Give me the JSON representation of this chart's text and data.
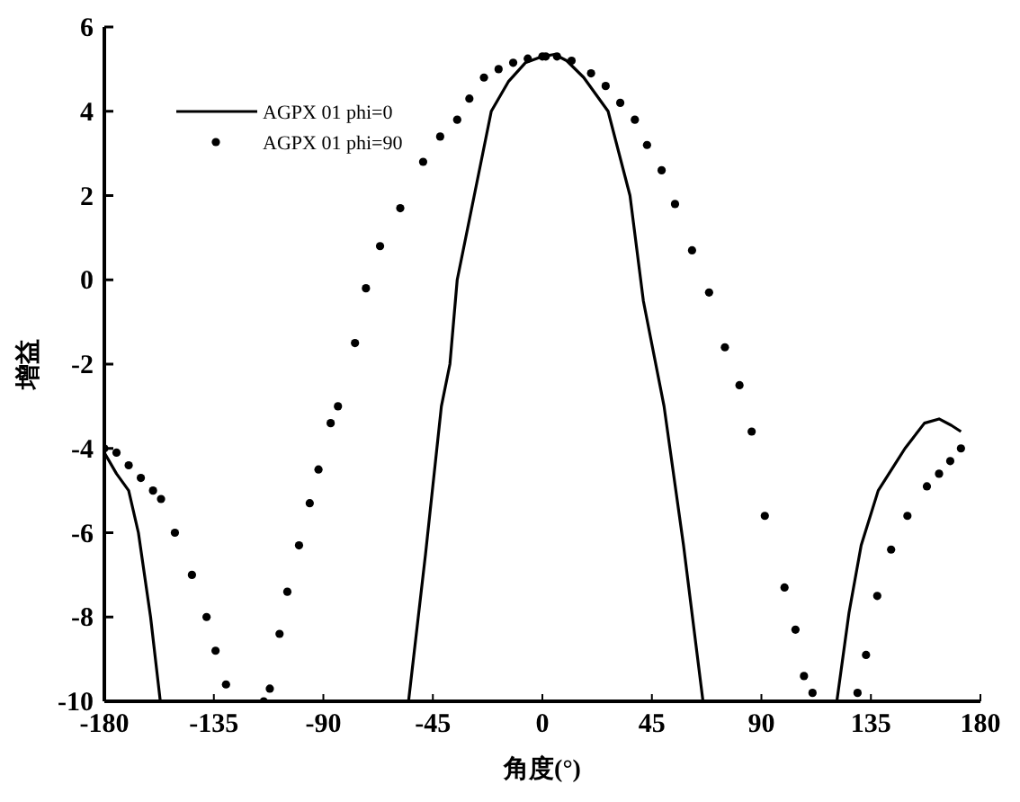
{
  "chart_data": {
    "type": "line",
    "xlabel": "角度(°)",
    "ylabel": "增益",
    "xlim": [
      -180,
      180
    ],
    "xticks": [
      -180,
      -135,
      -90,
      -45,
      0,
      45,
      90,
      135,
      180
    ],
    "ylim": [
      -10,
      6
    ],
    "yticks": [
      -10,
      -8,
      -6,
      -4,
      -2,
      0,
      2,
      4,
      6
    ],
    "grid": false,
    "legend": "top left",
    "series": [
      {
        "name": "AGPX 01 phi=0",
        "color": "#000000",
        "line_style": "solid",
        "marker": "none",
        "x": [
          -180,
          -175,
          -170,
          -166,
          -161,
          -157,
          -150,
          -55,
          -48,
          -41.5,
          -38,
          -35,
          -28,
          -21,
          -14,
          -7,
          0,
          5,
          10,
          17,
          27,
          36,
          41.5,
          50,
          58,
          66,
          90,
          121,
          126,
          131,
          138,
          149,
          157,
          163,
          168,
          172
        ],
        "values": [
          -4.1,
          -4.6,
          -5,
          -6,
          -8,
          -10,
          null,
          -10,
          -6.5,
          -3,
          -2,
          0,
          2,
          4,
          4.7,
          5.15,
          5.3,
          5.35,
          5.2,
          4.8,
          4,
          2,
          -0.5,
          -3,
          -6.3,
          -10,
          null,
          -10,
          -7.9,
          -6.3,
          -5,
          -4,
          -3.4,
          -3.3,
          -3.45,
          -3.6
        ]
      },
      {
        "name": "AGPX 01 phi=90",
        "type": "scatter",
        "color": "#000000",
        "marker": "circle",
        "x": [
          -180,
          -175,
          -170,
          -165,
          -160,
          -156.7,
          -151,
          -144,
          -138,
          -134.3,
          -130,
          -114.5,
          -112,
          -108,
          -104.8,
          -100,
          -95.6,
          -92,
          -87,
          -84,
          -77,
          -72.5,
          -66.7,
          -58.4,
          -49,
          -42,
          -35,
          -30,
          -24,
          -18,
          -12,
          -6,
          0,
          1.4,
          6,
          12,
          20,
          26,
          32,
          38,
          43,
          49,
          54.5,
          61.5,
          68.5,
          75,
          81,
          86,
          91.4,
          99.5,
          104,
          107.5,
          111,
          129.5,
          133,
          137.6,
          143.3,
          150,
          158,
          163,
          167.6,
          172
        ],
        "values": [
          -4.0,
          -4.1,
          -4.4,
          -4.7,
          -5.0,
          -5.2,
          -6.0,
          -7.0,
          -8.0,
          -8.8,
          -9.6,
          -10,
          -9.7,
          -8.4,
          -7.4,
          -6.3,
          -5.3,
          -4.5,
          -3.4,
          -3.0,
          -1.5,
          -0.2,
          0.8,
          1.7,
          2.8,
          3.4,
          3.8,
          4.3,
          4.8,
          5.0,
          5.15,
          5.25,
          5.3,
          5.3,
          5.3,
          5.2,
          4.9,
          4.6,
          4.2,
          3.8,
          3.2,
          2.6,
          1.8,
          0.7,
          -0.3,
          -1.6,
          -2.5,
          -3.6,
          -5.6,
          -7.3,
          -8.3,
          -9.4,
          -9.8,
          -9.8,
          -8.9,
          -7.5,
          -6.4,
          -5.6,
          -4.9,
          -4.6,
          -4.3,
          -4.0
        ]
      }
    ]
  }
}
